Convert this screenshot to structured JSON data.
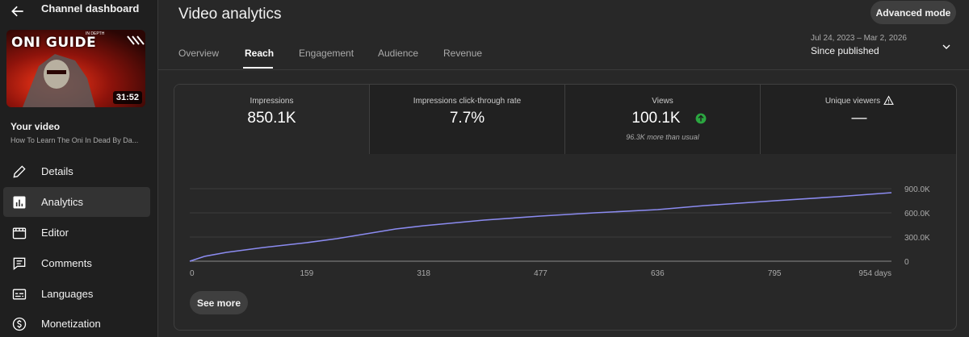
{
  "sidebar": {
    "title": "Channel dashboard",
    "thumbnail": {
      "title": "ONI GUIDE",
      "subtitle": "IN DEPTH",
      "duration": "31:52"
    },
    "your_video_label": "Your video",
    "video_title": "How To Learn The Oni In Dead By Da...",
    "items": [
      {
        "label": "Details",
        "icon": "pencil-icon"
      },
      {
        "label": "Analytics",
        "icon": "analytics-icon"
      },
      {
        "label": "Editor",
        "icon": "editor-icon"
      },
      {
        "label": "Comments",
        "icon": "comments-icon"
      },
      {
        "label": "Languages",
        "icon": "languages-icon"
      },
      {
        "label": "Monetization",
        "icon": "monetization-icon"
      }
    ]
  },
  "header": {
    "title": "Video analytics",
    "advanced_mode": "Advanced mode",
    "tabs": [
      "Overview",
      "Reach",
      "Engagement",
      "Audience",
      "Revenue"
    ],
    "active_tab": "Reach",
    "date_range": "Jul 24, 2023 – Mar 2, 2026",
    "date_label": "Since published"
  },
  "metrics": [
    {
      "label": "Impressions",
      "value": "850.1K"
    },
    {
      "label": "Impressions click-through rate",
      "value": "7.7%"
    },
    {
      "label": "Views",
      "value": "100.1K",
      "note": "96.3K more than usual"
    },
    {
      "label": "Unique viewers",
      "value": "—"
    }
  ],
  "see_more": "See more",
  "colors": {
    "line": "#8b8bf0",
    "accent_up": "#2ba640"
  },
  "chart_data": {
    "type": "line",
    "title": "Impressions",
    "x_tick_labels": [
      "0",
      "159",
      "318",
      "477",
      "636",
      "795",
      "954 days"
    ],
    "x_ticks": [
      0,
      159,
      318,
      477,
      636,
      795,
      954
    ],
    "y_tick_labels": [
      "0",
      "300.0K",
      "600.0K",
      "900.0K"
    ],
    "y_ticks": [
      0,
      300000,
      600000,
      900000
    ],
    "xlim": [
      0,
      954
    ],
    "ylim": [
      0,
      900000
    ],
    "series": [
      {
        "name": "Impressions",
        "x": [
          0,
          20,
          50,
          100,
          159,
          200,
          240,
          280,
          318,
          400,
          477,
          550,
          636,
          700,
          795,
          880,
          954
        ],
        "y": [
          0,
          60000,
          110000,
          170000,
          230000,
          280000,
          340000,
          400000,
          440000,
          510000,
          560000,
          600000,
          640000,
          690000,
          750000,
          800000,
          850100
        ]
      }
    ]
  }
}
